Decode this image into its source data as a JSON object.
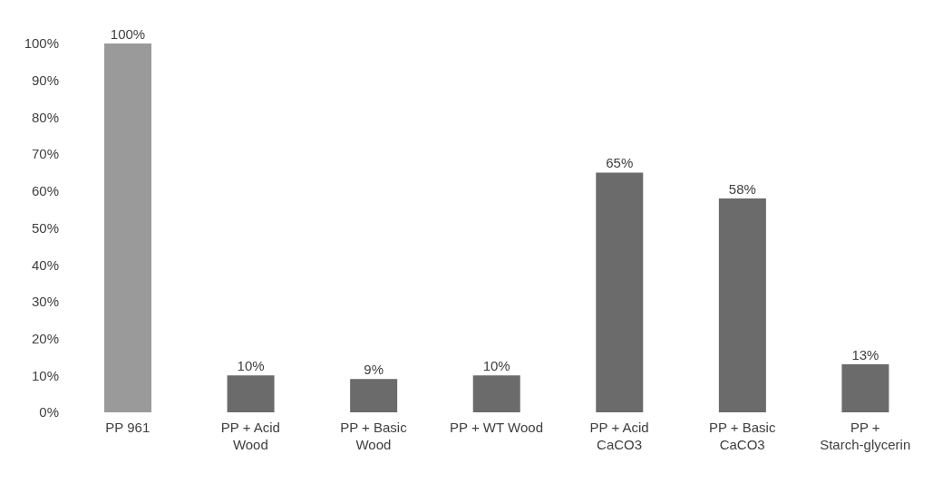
{
  "chart_data": {
    "type": "bar",
    "categories": [
      "PP 961",
      "PP + Acid Wood",
      "PP + Basic Wood",
      "PP + WT Wood",
      "PP + Acid CaCO3",
      "PP + Basic CaCO3",
      "PP + Starch-glycerin"
    ],
    "values": [
      100,
      10,
      9,
      10,
      65,
      58,
      13
    ],
    "colors": [
      "#9a9a9a",
      "#6b6b6b",
      "#6b6b6b",
      "#6b6b6b",
      "#6b6b6b",
      "#6b6b6b",
      "#6b6b6b"
    ],
    "value_labels": [
      "100%",
      "10%",
      "9%",
      "10%",
      "65%",
      "58%",
      "13%"
    ],
    "ylim": [
      0,
      100
    ],
    "yticks": [
      {
        "value": 0,
        "label": "0%"
      },
      {
        "value": 10,
        "label": "10%"
      },
      {
        "value": 20,
        "label": "20%"
      },
      {
        "value": 30,
        "label": "30%"
      },
      {
        "value": 40,
        "label": "40%"
      },
      {
        "value": 50,
        "label": "50%"
      },
      {
        "value": 60,
        "label": "60%"
      },
      {
        "value": 70,
        "label": "70%"
      },
      {
        "value": 80,
        "label": "80%"
      },
      {
        "value": 90,
        "label": "90%"
      },
      {
        "value": 100,
        "label": "100%"
      }
    ],
    "grid": false,
    "legend": false
  }
}
